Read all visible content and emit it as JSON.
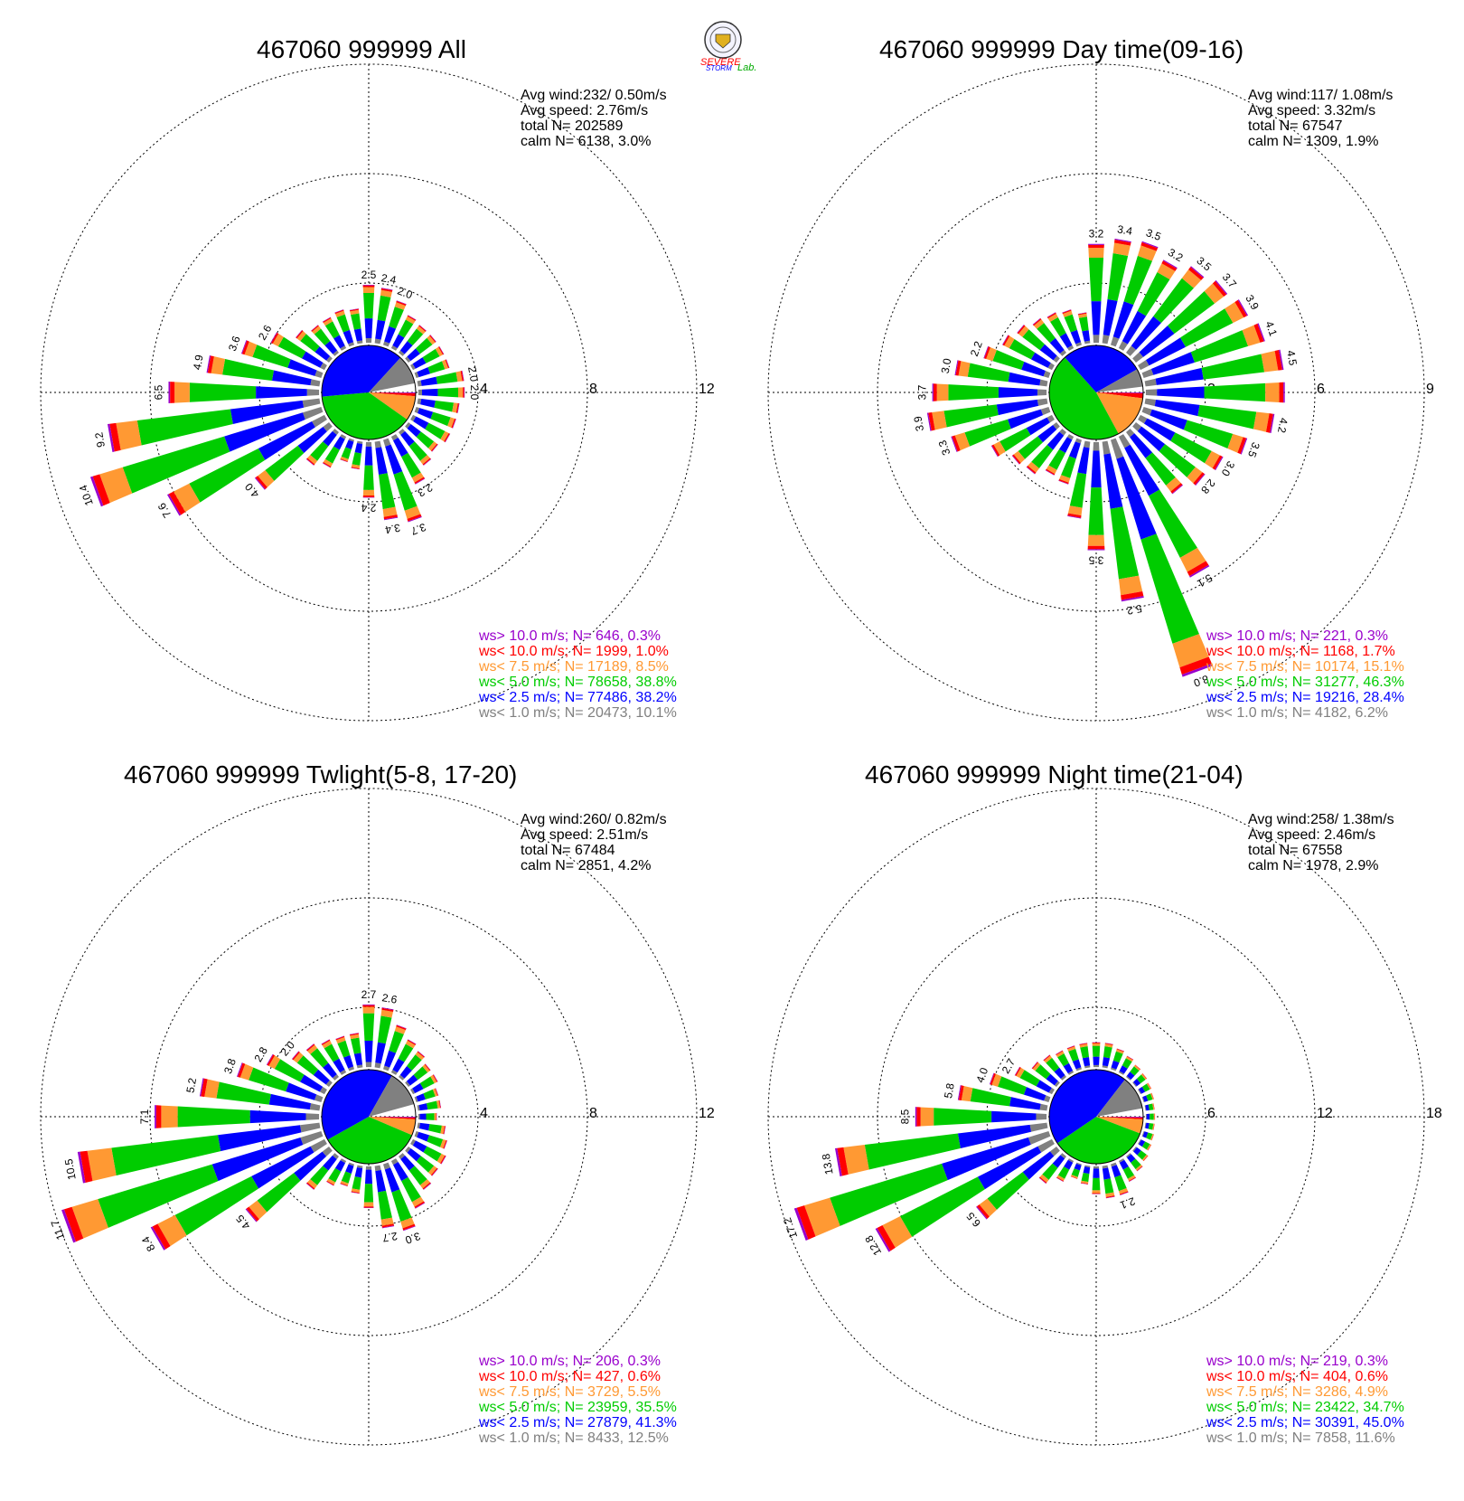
{
  "logo": {
    "word1": "SEVERE",
    "word2": "STORM",
    "word3": "Lab."
  },
  "panels": [
    {
      "title": "467060 999999 All",
      "stats": [
        "Avg wind:232/ 0.50m/s",
        "Avg speed: 2.76m/s",
        "total N=      202589",
        "calm N=   6138,   3.0%"
      ],
      "ring_labels": [
        "4",
        "8",
        "12"
      ],
      "legend": [
        {
          "text": "ws> 10.0 m/s; N=   646,  0.3%",
          "color": "#9900cc"
        },
        {
          "text": "ws< 10.0 m/s; N=  1999,  1.0%",
          "color": "#ff0000"
        },
        {
          "text": "ws<  7.5 m/s; N= 17189,  8.5%",
          "color": "#ff9933"
        },
        {
          "text": "ws<  5.0 m/s; N= 78658, 38.8%",
          "color": "#00cc00"
        },
        {
          "text": "ws<  2.5 m/s; N= 77486, 38.2%",
          "color": "#0000ff"
        },
        {
          "text": "ws<  1.0 m/s; N= 20473, 10.1%",
          "color": "#808080"
        }
      ]
    },
    {
      "title": "467060 999999 Day time(09-16)",
      "stats": [
        "Avg wind:117/ 1.08m/s",
        "Avg speed: 3.32m/s",
        "total N=      67547",
        "calm N=   1309,   1.9%"
      ],
      "ring_labels": [
        "3",
        "6",
        "9"
      ],
      "legend": [
        {
          "text": "ws> 10.0 m/s; N=   221,  0.3%",
          "color": "#9900cc"
        },
        {
          "text": "ws< 10.0 m/s; N=  1168,  1.7%",
          "color": "#ff0000"
        },
        {
          "text": "ws<  7.5 m/s; N= 10174, 15.1%",
          "color": "#ff9933"
        },
        {
          "text": "ws<  5.0 m/s; N= 31277, 46.3%",
          "color": "#00cc00"
        },
        {
          "text": "ws<  2.5 m/s; N= 19216, 28.4%",
          "color": "#0000ff"
        },
        {
          "text": "ws<  1.0 m/s; N=  4182,  6.2%",
          "color": "#808080"
        }
      ]
    },
    {
      "title": "467060 999999 Twlight(5-8, 17-20)",
      "stats": [
        "Avg wind:260/ 0.82m/s",
        "Avg speed: 2.51m/s",
        "total N=      67484",
        "calm N=   2851,   4.2%"
      ],
      "ring_labels": [
        "4",
        "8",
        "12"
      ],
      "legend": [
        {
          "text": "ws> 10.0 m/s; N=   206,  0.3%",
          "color": "#9900cc"
        },
        {
          "text": "ws< 10.0 m/s; N=   427,  0.6%",
          "color": "#ff0000"
        },
        {
          "text": "ws<  7.5 m/s; N=  3729,  5.5%",
          "color": "#ff9933"
        },
        {
          "text": "ws<  5.0 m/s; N= 23959, 35.5%",
          "color": "#00cc00"
        },
        {
          "text": "ws<  2.5 m/s; N= 27879, 41.3%",
          "color": "#0000ff"
        },
        {
          "text": "ws<  1.0 m/s; N=  8433, 12.5%",
          "color": "#808080"
        }
      ]
    },
    {
      "title": "467060 999999 Night time(21-04)",
      "stats": [
        "Avg wind:258/ 1.38m/s",
        "Avg speed: 2.46m/s",
        "total N=      67558",
        "calm N=   1978,   2.9%"
      ],
      "ring_labels": [
        "6",
        "12",
        "18"
      ],
      "legend": [
        {
          "text": "ws> 10.0 m/s; N=   219,  0.3%",
          "color": "#9900cc"
        },
        {
          "text": "ws< 10.0 m/s; N=   404,  0.6%",
          "color": "#ff0000"
        },
        {
          "text": "ws<  7.5 m/s; N=  3286,  4.9%",
          "color": "#ff9933"
        },
        {
          "text": "ws<  5.0 m/s; N= 23422, 34.7%",
          "color": "#00cc00"
        },
        {
          "text": "ws<  2.5 m/s; N= 30391, 45.0%",
          "color": "#0000ff"
        },
        {
          "text": "ws<  1.0 m/s; N=  7858, 11.6%",
          "color": "#808080"
        }
      ]
    }
  ],
  "chart_data": [
    {
      "type": "wind_rose",
      "title": "467060 999999 All",
      "ring_max": 12,
      "ring_ticks": [
        4,
        8,
        12
      ],
      "direction_deg": [
        0,
        10,
        20,
        30,
        40,
        50,
        60,
        70,
        80,
        90,
        100,
        110,
        120,
        130,
        140,
        150,
        160,
        170,
        180,
        190,
        200,
        210,
        220,
        230,
        240,
        250,
        260,
        270,
        280,
        290,
        300,
        310,
        320,
        330,
        340,
        350
      ],
      "totals": [
        2.5,
        2.4,
        2.0,
        1.6,
        1.5,
        1.5,
        1.5,
        1.5,
        2.0,
        2.0,
        1.8,
        1.8,
        1.8,
        1.6,
        1.8,
        2.3,
        3.7,
        3.4,
        2.4,
        1.2,
        1.0,
        1.5,
        1.8,
        4.0,
        7.6,
        10.4,
        9.2,
        6.5,
        4.9,
        3.6,
        2.6,
        1.8,
        1.5,
        1.5,
        1.6,
        1.5
      ],
      "labeled": [
        0,
        1,
        2,
        8,
        9,
        15,
        16,
        17,
        18,
        23,
        24,
        25,
        26,
        27,
        28,
        29,
        30
      ],
      "pie_percent": [
        0.3,
        1.0,
        8.5,
        38.8,
        38.2,
        10.1
      ],
      "series": [
        {
          "name": "ws> 10.0 m/s",
          "color": "#9900cc"
        },
        {
          "name": "ws< 10.0 m/s",
          "color": "#ff0000"
        },
        {
          "name": "ws<  7.5 m/s",
          "color": "#ff9933"
        },
        {
          "name": "ws<  5.0 m/s",
          "color": "#00cc00"
        },
        {
          "name": "ws<  2.5 m/s",
          "color": "#0000ff"
        },
        {
          "name": "ws<  1.0 m/s",
          "color": "#808080"
        }
      ]
    },
    {
      "type": "wind_rose",
      "title": "467060 999999 Day time(09-16)",
      "ring_max": 9,
      "ring_ticks": [
        3,
        6,
        9
      ],
      "direction_deg": [
        0,
        10,
        20,
        30,
        40,
        50,
        60,
        70,
        80,
        90,
        100,
        110,
        120,
        130,
        140,
        150,
        160,
        170,
        180,
        190,
        200,
        210,
        220,
        230,
        240,
        250,
        260,
        270,
        280,
        290,
        300,
        310,
        320,
        330,
        340,
        350
      ],
      "totals": [
        3.2,
        3.4,
        3.5,
        3.2,
        3.5,
        3.7,
        3.9,
        4.1,
        4.5,
        4.5,
        4.2,
        3.5,
        3.0,
        2.8,
        2.5,
        5.1,
        8.0,
        5.2,
        3.5,
        2.5,
        1.5,
        1.4,
        1.7,
        1.8,
        2.2,
        3.3,
        3.9,
        3.7,
        3.0,
        2.2,
        1.8,
        1.6,
        1.4,
        1.3,
        1.2,
        1.0
      ],
      "labeled": [
        0,
        1,
        2,
        3,
        4,
        5,
        6,
        7,
        8,
        10,
        11,
        12,
        13,
        15,
        16,
        17,
        18,
        25,
        26,
        27,
        28,
        29
      ],
      "pie_percent": [
        0.3,
        1.7,
        15.1,
        46.3,
        28.4,
        6.2
      ],
      "series": [
        {
          "name": "ws> 10.0 m/s",
          "color": "#9900cc"
        },
        {
          "name": "ws< 10.0 m/s",
          "color": "#ff0000"
        },
        {
          "name": "ws<  7.5 m/s",
          "color": "#ff9933"
        },
        {
          "name": "ws<  5.0 m/s",
          "color": "#00cc00"
        },
        {
          "name": "ws<  2.5 m/s",
          "color": "#0000ff"
        },
        {
          "name": "ws<  1.0 m/s",
          "color": "#808080"
        }
      ]
    },
    {
      "type": "wind_rose",
      "title": "467060 999999 Twlight(5-8, 17-20)",
      "ring_max": 12,
      "ring_ticks": [
        4,
        8,
        12
      ],
      "direction_deg": [
        0,
        10,
        20,
        30,
        40,
        50,
        60,
        70,
        80,
        90,
        100,
        110,
        120,
        130,
        140,
        150,
        160,
        170,
        180,
        190,
        200,
        210,
        220,
        230,
        240,
        250,
        260,
        270,
        280,
        290,
        300,
        310,
        320,
        330,
        340,
        350
      ],
      "totals": [
        2.7,
        2.6,
        2.0,
        1.6,
        1.4,
        1.2,
        1.2,
        1.0,
        1.0,
        0.8,
        1.2,
        1.4,
        1.6,
        1.6,
        1.8,
        2.3,
        3.0,
        2.7,
        1.8,
        1.2,
        1.0,
        1.2,
        1.8,
        4.5,
        8.4,
        11.7,
        10.5,
        7.1,
        5.2,
        3.8,
        2.8,
        2.0,
        1.8,
        1.6,
        1.5,
        1.5
      ],
      "labeled": [
        0,
        1,
        16,
        17,
        23,
        24,
        25,
        26,
        27,
        28,
        29,
        30,
        31
      ],
      "pie_percent": [
        0.3,
        0.6,
        5.5,
        35.5,
        41.3,
        12.5
      ],
      "series": [
        {
          "name": "ws> 10.0 m/s",
          "color": "#9900cc"
        },
        {
          "name": "ws< 10.0 m/s",
          "color": "#ff0000"
        },
        {
          "name": "ws<  7.5 m/s",
          "color": "#ff9933"
        },
        {
          "name": "ws<  5.0 m/s",
          "color": "#00cc00"
        },
        {
          "name": "ws<  2.5 m/s",
          "color": "#0000ff"
        },
        {
          "name": "ws<  1.0 m/s",
          "color": "#808080"
        }
      ]
    },
    {
      "type": "wind_rose",
      "title": "467060 999999 Night time(21-04)",
      "ring_max": 18,
      "ring_ticks": [
        6,
        12,
        18
      ],
      "direction_deg": [
        0,
        10,
        20,
        30,
        40,
        50,
        60,
        70,
        80,
        90,
        100,
        110,
        120,
        130,
        140,
        150,
        160,
        170,
        180,
        190,
        200,
        210,
        220,
        230,
        240,
        250,
        260,
        270,
        280,
        290,
        300,
        310,
        320,
        330,
        340,
        350
      ],
      "totals": [
        1.6,
        1.6,
        1.4,
        1.2,
        1.0,
        0.9,
        0.8,
        0.7,
        0.6,
        0.6,
        0.6,
        0.7,
        0.8,
        1.0,
        1.2,
        1.5,
        2.1,
        2.1,
        1.8,
        1.2,
        1.0,
        1.5,
        2.2,
        6.5,
        12.8,
        17.2,
        13.8,
        8.5,
        5.8,
        4.0,
        2.7,
        2.0,
        1.8,
        1.6,
        1.6,
        1.6
      ],
      "labeled": [
        16,
        23,
        24,
        25,
        26,
        27,
        28,
        29,
        30
      ],
      "pie_percent": [
        0.3,
        0.6,
        4.9,
        34.7,
        45.0,
        11.6
      ],
      "series": [
        {
          "name": "ws> 10.0 m/s",
          "color": "#9900cc"
        },
        {
          "name": "ws< 10.0 m/s",
          "color": "#ff0000"
        },
        {
          "name": "ws<  7.5 m/s",
          "color": "#ff9933"
        },
        {
          "name": "ws<  5.0 m/s",
          "color": "#00cc00"
        },
        {
          "name": "ws<  2.5 m/s",
          "color": "#0000ff"
        },
        {
          "name": "ws<  1.0 m/s",
          "color": "#808080"
        }
      ]
    }
  ]
}
